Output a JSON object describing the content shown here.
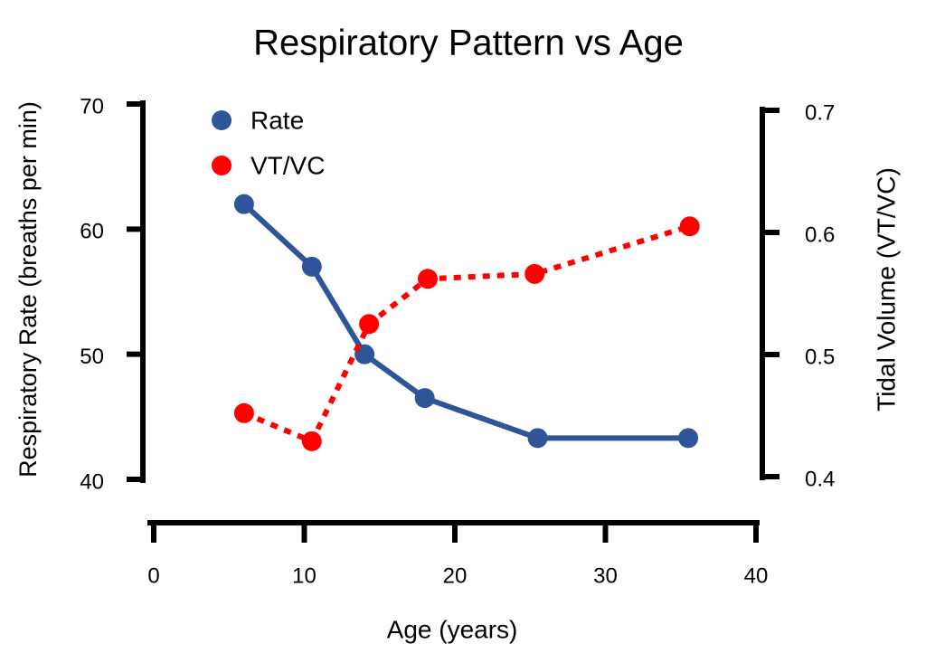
{
  "chart_data": {
    "type": "line",
    "title": "Respiratory Pattern vs Age",
    "x_label": "Age (years)",
    "y_label": "Respiratory Rate (breaths per min)",
    "y2_label": "Tidal Volume (VT/VC)",
    "xlim": [
      0,
      40
    ],
    "xticks": [
      0,
      10,
      20,
      30,
      40
    ],
    "ylim": [
      40,
      70
    ],
    "yticks": [
      40,
      50,
      60,
      70
    ],
    "y2lim": [
      0.4,
      0.7
    ],
    "y2ticks": [
      0.4,
      0.5,
      0.6,
      0.7
    ],
    "legend": "upper left",
    "series": [
      {
        "name": "Rate",
        "color": "#2e5597",
        "style": "solid",
        "x": [
          6,
          10.5,
          14,
          18,
          25.5,
          35.5
        ],
        "values": [
          62,
          57,
          50,
          46.5,
          43.3,
          43.3
        ]
      },
      {
        "name": "VT/VC",
        "color": "#ff0000",
        "style": "dotted",
        "axis": "y2",
        "x": [
          6,
          10.5,
          14.3,
          18.2,
          25.3,
          35.6
        ],
        "values": [
          0.452,
          0.429,
          0.525,
          0.562,
          0.566,
          0.605
        ]
      }
    ]
  }
}
